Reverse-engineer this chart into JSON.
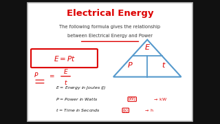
{
  "title": "Electrical Energy",
  "subtitle_line1": "The following formula gives the relationship",
  "subtitle_line2": "between Electrical Energy and Power",
  "title_color": "#dd0000",
  "subtitle_color": "#333333",
  "formula_color": "#dd0000",
  "triangle_color": "#5599cc",
  "bg_color": "#f5f5f5",
  "white": "#ffffff",
  "border_color": "#bbbbbb",
  "black_bar_color": "#111111",
  "black_bar_width": 0.115,
  "legend1": "E = Energy in Joules (J)",
  "legend2_pre": "P = Power in Watts ",
  "legend2_box": "(W)",
  "legend2_arrow": "→ kW",
  "legend3_pre": "t = Time in Seconds ",
  "legend3_box": "(s)",
  "legend3_arrow": "→ h"
}
